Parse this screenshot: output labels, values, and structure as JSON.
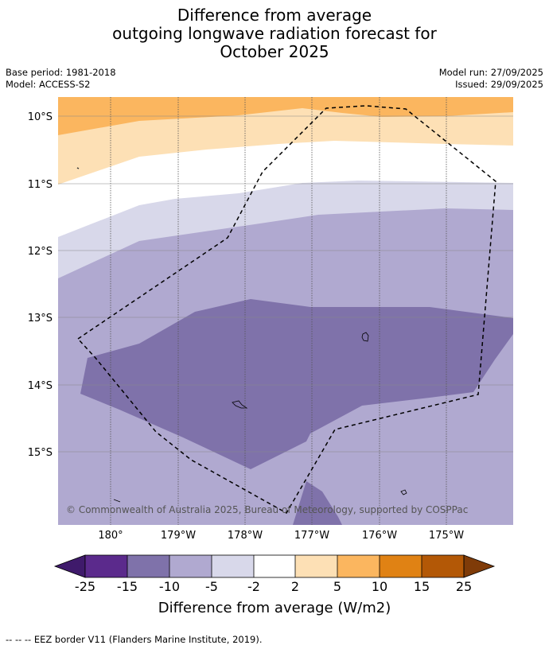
{
  "title": {
    "line1": "Difference from average",
    "line2": "outgoing longwave radiation forecast for",
    "line3": "October 2025"
  },
  "meta": {
    "base_period": "Base period: 1981-2018",
    "model": "Model: ACCESS-S2",
    "model_run": "Model run: 27/09/2025",
    "issued": "Issued: 29/09/2025"
  },
  "map": {
    "lat_labels": [
      "10°S",
      "11°S",
      "12°S",
      "13°S",
      "14°S",
      "15°S"
    ],
    "lon_labels": [
      "180°",
      "179°W",
      "178°W",
      "177°W",
      "176°W",
      "175°W"
    ],
    "copyright": "© Commonwealth of Australia 2025, Bureau of Meteorology, supported by COSPPac"
  },
  "colorbar": {
    "ticks": [
      "-25",
      "-15",
      "-10",
      "-5",
      "-2",
      "2",
      "5",
      "10",
      "15",
      "25"
    ],
    "colors": [
      "#3f1a6b",
      "#5b2a8c",
      "#7f72aa",
      "#b0a9d0",
      "#d8d8ea",
      "#ffffff",
      "#fde0b5",
      "#fbb65f",
      "#e08214",
      "#b35806",
      "#7f3b08"
    ],
    "label": "Difference from average (W/m2)"
  },
  "footer": "--  --  -- EEZ border V11 (Flanders Marine Institute, 2019)."
}
